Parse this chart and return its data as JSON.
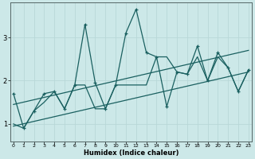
{
  "xlabel": "Humidex (Indice chaleur)",
  "background_color": "#cce8e8",
  "line_color": "#1a6060",
  "grid_color": "#b8d8d8",
  "x_ticks": [
    0,
    1,
    2,
    3,
    4,
    5,
    6,
    7,
    8,
    9,
    10,
    11,
    12,
    13,
    14,
    15,
    16,
    17,
    18,
    19,
    20,
    21,
    22,
    23
  ],
  "y_ticks": [
    1,
    2,
    3
  ],
  "ylim": [
    0.6,
    3.8
  ],
  "xlim": [
    -0.3,
    23.3
  ],
  "line1_x": [
    0,
    1,
    2,
    3,
    4,
    5,
    6,
    7,
    8,
    9,
    10,
    11,
    12,
    13,
    14,
    15,
    16,
    17,
    18,
    19,
    20,
    21,
    22,
    23
  ],
  "line1_y": [
    1.7,
    0.9,
    1.3,
    1.7,
    1.75,
    1.35,
    1.9,
    3.3,
    1.95,
    1.35,
    1.9,
    3.1,
    3.65,
    2.65,
    2.55,
    1.4,
    2.2,
    2.15,
    2.8,
    2.0,
    2.65,
    2.3,
    1.75,
    2.25
  ],
  "line2_x": [
    0,
    1,
    2,
    3,
    4,
    5,
    6,
    7,
    8,
    9,
    10,
    11,
    12,
    13,
    14,
    15,
    16,
    17,
    18,
    19,
    20,
    21,
    22,
    23
  ],
  "line2_y": [
    1.0,
    0.9,
    1.3,
    1.5,
    1.75,
    1.35,
    1.9,
    1.9,
    1.35,
    1.35,
    1.9,
    1.9,
    1.9,
    1.9,
    2.55,
    2.55,
    2.2,
    2.15,
    2.55,
    2.0,
    2.55,
    2.3,
    1.75,
    2.25
  ],
  "trend1_x": [
    0,
    23
  ],
  "trend1_y": [
    0.95,
    2.2
  ],
  "trend2_x": [
    0,
    23
  ],
  "trend2_y": [
    1.45,
    2.7
  ]
}
